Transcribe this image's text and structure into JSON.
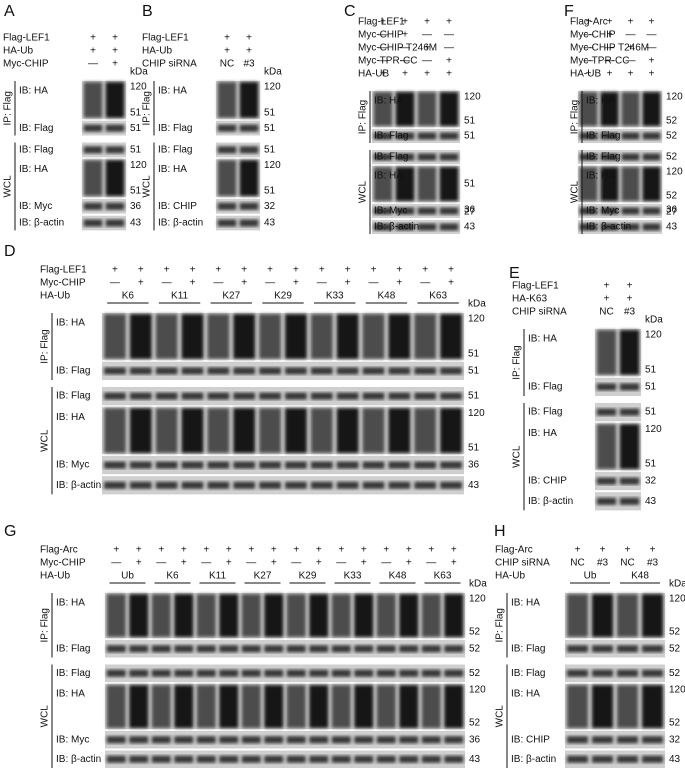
{
  "panels": [
    {
      "letter": "A",
      "conditions": [
        {
          "label": "Flag-LEF1",
          "marks": [
            "+",
            "+"
          ]
        },
        {
          "label": "HA-Ub",
          "marks": [
            "+",
            "+"
          ]
        },
        {
          "label": "Myc-CHIP",
          "marks": [
            "—",
            "+"
          ]
        }
      ],
      "kda": "kDa",
      "groups": [
        {
          "label": "IP: Flag",
          "blots": [
            {
              "label": "IB: HA",
              "markers": [
                "120",
                "51"
              ]
            },
            {
              "label": "IB: Flag",
              "markers": [
                "51"
              ]
            }
          ]
        },
        {
          "label": "WCL",
          "blots": [
            {
              "label": "IB: Flag",
              "markers": [
                "51"
              ]
            },
            {
              "label": "IB: HA",
              "markers": [
                "120",
                "51"
              ]
            },
            {
              "label": "IB: Myc",
              "markers": [
                "36"
              ]
            },
            {
              "label": "IB: β-actin",
              "markers": [
                "43"
              ]
            }
          ]
        }
      ]
    },
    {
      "letter": "B",
      "conditions": [
        {
          "label": "Flag-LEF1",
          "marks": [
            "+",
            "+"
          ]
        },
        {
          "label": "HA-Ub",
          "marks": [
            "+",
            "+"
          ]
        },
        {
          "label": "CHIP siRNA",
          "marks": [
            "NC",
            "#3"
          ]
        }
      ],
      "kda": "kDa",
      "groups": [
        {
          "label": "IP: Flag",
          "blots": [
            {
              "label": "IB: HA",
              "markers": [
                "120",
                "51"
              ]
            },
            {
              "label": "IB: Flag",
              "markers": [
                "51"
              ]
            }
          ]
        },
        {
          "label": "WCL",
          "blots": [
            {
              "label": "IB: Flag",
              "markers": [
                "51"
              ]
            },
            {
              "label": "IB: HA",
              "markers": [
                "120",
                "51"
              ]
            },
            {
              "label": "IB: CHIP",
              "markers": [
                "32"
              ]
            },
            {
              "label": "IB: β-actin",
              "markers": [
                "43"
              ]
            }
          ]
        }
      ]
    },
    {
      "letter": "C",
      "conditions": [
        {
          "label": "Flag-LEF1",
          "marks": [
            "+",
            "+",
            "+",
            "+"
          ]
        },
        {
          "label": "Myc-CHIP",
          "marks": [
            "—",
            "+",
            "—",
            "—"
          ]
        },
        {
          "label": "Myc-CHIP T246M",
          "marks": [
            "—",
            "—",
            "+",
            "—"
          ]
        },
        {
          "label": "Myc-TPR-CC",
          "marks": [
            "—",
            "—",
            "—",
            "+"
          ]
        },
        {
          "label": "HA-UB",
          "marks": [
            "+",
            "+",
            "+",
            "+"
          ]
        }
      ],
      "groups": [
        {
          "label": "IP: Flag",
          "blots": [
            {
              "label": "IB: HA",
              "markers": [
                "120",
                "51"
              ]
            },
            {
              "label": "IB: Flag",
              "markers": [
                "51"
              ]
            }
          ]
        },
        {
          "label": "WCL",
          "blots": [
            {
              "label": "IB: Flag",
              "markers": []
            },
            {
              "label": "IB: HA",
              "markers": [
                "51"
              ]
            },
            {
              "label": "IB: Myc",
              "markers": [
                "36",
                "27"
              ]
            },
            {
              "label": "IB: β-actin",
              "markers": [
                "43"
              ]
            }
          ]
        }
      ]
    },
    {
      "letter": "F",
      "conditions": [
        {
          "label": "Flag-Arc",
          "marks": [
            "+",
            "+",
            "+",
            "+"
          ]
        },
        {
          "label": "Myc-CHIP",
          "marks": [
            "—",
            "+",
            "—",
            "—"
          ]
        },
        {
          "label": "Myc-CHIP T246M",
          "marks": [
            "—",
            "—",
            "+",
            "—"
          ]
        },
        {
          "label": "Myc-TPR-CC",
          "marks": [
            "—",
            "—",
            "—",
            "+"
          ]
        },
        {
          "label": "HA-UB",
          "marks": [
            "+",
            "+",
            "+",
            "+"
          ]
        }
      ],
      "groups": [
        {
          "label": "IP: Flag",
          "blots": [
            {
              "label": "IB: HA",
              "markers": [
                "120",
                "52"
              ]
            },
            {
              "label": "IB: Flag",
              "markers": [
                "52"
              ]
            }
          ]
        },
        {
          "label": "WCL",
          "blots": [
            {
              "label": "IB: Flag",
              "markers": [
                "52"
              ]
            },
            {
              "label": "IB: HA",
              "markers": [
                "120",
                "52"
              ]
            },
            {
              "label": "IB: Myc",
              "markers": [
                "36",
                "27"
              ]
            },
            {
              "label": "IB: β-actin",
              "markers": [
                "43"
              ]
            }
          ]
        }
      ]
    },
    {
      "letter": "D",
      "conditions": [
        {
          "label": "Flag-LEF1",
          "marks": [
            "+",
            "+",
            "+",
            "+",
            "+",
            "+",
            "+",
            "+",
            "+",
            "+",
            "+",
            "+",
            "+",
            "+"
          ]
        },
        {
          "label": "Myc-CHIP",
          "marks": [
            "—",
            "+",
            "—",
            "+",
            "—",
            "+",
            "—",
            "+",
            "—",
            "+",
            "—",
            "+",
            "—",
            "+"
          ]
        },
        {
          "label": "HA-Ub",
          "groups": [
            "K6",
            "K11",
            "K27",
            "K29",
            "K33",
            "K48",
            "K63"
          ]
        }
      ],
      "kda": "kDa",
      "groups": [
        {
          "label": "IP: Flag",
          "blots": [
            {
              "label": "IB: HA",
              "markers": [
                "120",
                "51"
              ]
            },
            {
              "label": "IB: Flag",
              "markers": [
                "51"
              ]
            }
          ]
        },
        {
          "label": "WCL",
          "blots": [
            {
              "label": "IB: Flag",
              "markers": [
                "51"
              ]
            },
            {
              "label": "IB: HA",
              "markers": [
                "120",
                "51"
              ]
            },
            {
              "label": "IB: Myc",
              "markers": [
                "36"
              ]
            },
            {
              "label": "IB: β-actin",
              "markers": [
                "43"
              ]
            }
          ]
        }
      ]
    },
    {
      "letter": "E",
      "conditions": [
        {
          "label": "Flag-LEF1",
          "marks": [
            "+",
            "+"
          ]
        },
        {
          "label": "HA-K63",
          "marks": [
            "+",
            "+"
          ]
        },
        {
          "label": "CHIP siRNA",
          "marks": [
            "NC",
            "#3"
          ]
        }
      ],
      "kda": "kDa",
      "groups": [
        {
          "label": "IP: Flag",
          "blots": [
            {
              "label": "IB: HA",
              "markers": [
                "120",
                "51"
              ]
            },
            {
              "label": "IB: Flag",
              "markers": [
                "51"
              ]
            }
          ]
        },
        {
          "label": "WCL",
          "blots": [
            {
              "label": "IB: Flag",
              "markers": [
                "51"
              ]
            },
            {
              "label": "IB: HA",
              "markers": [
                "120",
                "51"
              ]
            },
            {
              "label": "IB: CHIP",
              "markers": [
                "32"
              ]
            },
            {
              "label": "IB: β-actin",
              "markers": [
                "43"
              ]
            }
          ]
        }
      ]
    },
    {
      "letter": "G",
      "conditions": [
        {
          "label": "Flag-Arc",
          "marks": [
            "+",
            "+",
            "+",
            "+",
            "+",
            "+",
            "+",
            "+",
            "+",
            "+",
            "+",
            "+",
            "+",
            "+",
            "+",
            "+"
          ]
        },
        {
          "label": "Myc-CHIP",
          "marks": [
            "—",
            "+",
            "—",
            "+",
            "—",
            "+",
            "—",
            "+",
            "—",
            "+",
            "—",
            "+",
            "—",
            "+",
            "—",
            "+"
          ]
        },
        {
          "label": "HA-Ub",
          "groups": [
            "Ub",
            "K6",
            "K11",
            "K27",
            "K29",
            "K33",
            "K48",
            "K63"
          ]
        }
      ],
      "kda": "kDa",
      "groups": [
        {
          "label": "IP: Flag",
          "blots": [
            {
              "label": "IB: HA",
              "markers": [
                "120",
                "52"
              ]
            },
            {
              "label": "IB: Flag",
              "markers": [
                "52"
              ]
            }
          ]
        },
        {
          "label": "WCL",
          "blots": [
            {
              "label": "IB: Flag",
              "markers": [
                "52"
              ]
            },
            {
              "label": "IB: HA",
              "markers": [
                "120",
                "52"
              ]
            },
            {
              "label": "IB: Myc",
              "markers": [
                "36"
              ]
            },
            {
              "label": "IB: β-actin",
              "markers": [
                "43"
              ]
            }
          ]
        }
      ]
    },
    {
      "letter": "H",
      "conditions": [
        {
          "label": "Flag-Arc",
          "marks": [
            "+",
            "+",
            "+",
            "+"
          ]
        },
        {
          "label": "CHIP siRNA",
          "marks": [
            "NC",
            "#3",
            "NC",
            "#3"
          ]
        },
        {
          "label": "HA-Ub",
          "groups": [
            "Ub",
            "K48"
          ]
        }
      ],
      "kda": "kDa",
      "groups": [
        {
          "label": "IP: Flag",
          "blots": [
            {
              "label": "IB: HA",
              "markers": [
                "120",
                "52"
              ]
            },
            {
              "label": "IB: Flag",
              "markers": [
                "52"
              ]
            }
          ]
        },
        {
          "label": "WCL",
          "blots": [
            {
              "label": "IB: Flag",
              "markers": [
                "52"
              ]
            },
            {
              "label": "IB: HA",
              "markers": [
                "120",
                "52"
              ]
            },
            {
              "label": "IB: CHIP",
              "markers": [
                "32"
              ]
            },
            {
              "label": "IB: β-actin",
              "markers": [
                "43"
              ]
            }
          ]
        }
      ]
    }
  ]
}
